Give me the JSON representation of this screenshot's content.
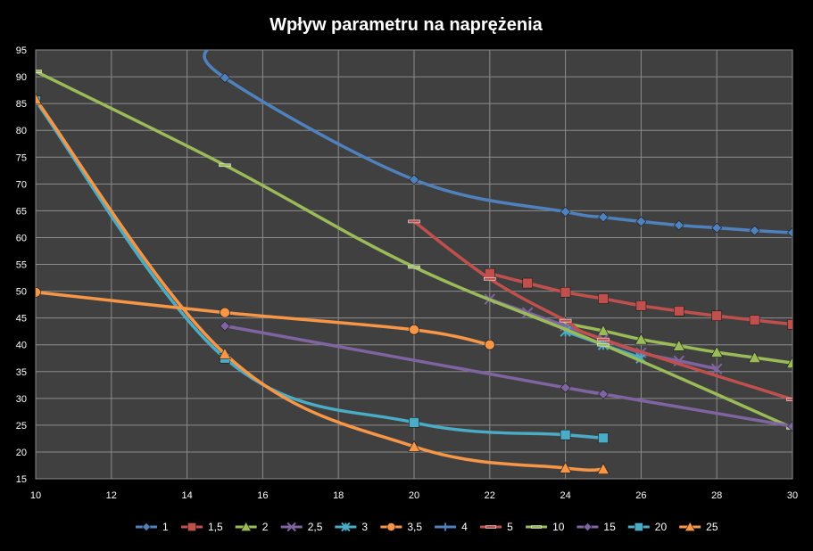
{
  "chart_data": {
    "type": "line",
    "title": "Wpływ parametru na naprężenia",
    "xlabel": "",
    "ylabel": "",
    "xlim": [
      10,
      30
    ],
    "ylim": [
      15,
      95
    ],
    "xticks": [
      10,
      12,
      14,
      16,
      18,
      20,
      22,
      24,
      26,
      28,
      30
    ],
    "yticks": [
      15,
      20,
      25,
      30,
      35,
      40,
      45,
      50,
      55,
      60,
      65,
      70,
      75,
      80,
      85,
      90,
      95
    ],
    "grid": true,
    "legend_position": "bottom",
    "background": "#404040",
    "series": [
      {
        "name": "1",
        "color": "#4F81BD",
        "marker": "diamond",
        "points": [
          [
            14.6,
            96
          ],
          [
            15,
            89.8
          ],
          [
            20,
            70.8
          ],
          [
            24,
            64.8
          ],
          [
            25,
            63.8
          ],
          [
            26,
            63
          ],
          [
            27,
            62.3
          ],
          [
            28,
            61.8
          ],
          [
            29,
            61.3
          ],
          [
            30,
            60.9
          ]
        ]
      },
      {
        "name": "1,5",
        "color": "#C0504D",
        "marker": "square",
        "points": [
          [
            22,
            53.3
          ],
          [
            23,
            51.5
          ],
          [
            24,
            49.8
          ],
          [
            25,
            48.6
          ],
          [
            26,
            47.3
          ],
          [
            27,
            46.3
          ],
          [
            28,
            45.4
          ],
          [
            29,
            44.6
          ],
          [
            30,
            43.8
          ]
        ]
      },
      {
        "name": "2",
        "color": "#9BBB59",
        "marker": "triangle",
        "points": [
          [
            24,
            44
          ],
          [
            25,
            42.6
          ],
          [
            26,
            41
          ],
          [
            27,
            39.8
          ],
          [
            28,
            38.6
          ],
          [
            29,
            37.6
          ],
          [
            30,
            36.6
          ]
        ]
      },
      {
        "name": "2,5",
        "color": "#8064A2",
        "marker": "x",
        "points": [
          [
            22,
            48.5
          ],
          [
            23,
            46
          ],
          [
            24,
            43.5
          ],
          [
            25,
            41
          ],
          [
            26,
            38.5
          ],
          [
            27,
            37
          ],
          [
            28,
            35.5
          ]
        ]
      },
      {
        "name": "3",
        "color": "#4BACC6",
        "marker": "star",
        "points": [
          [
            24,
            42.5
          ],
          [
            25,
            40
          ],
          [
            26,
            37.5
          ]
        ]
      },
      {
        "name": "3,5",
        "color": "#F79646",
        "marker": "circle",
        "points": [
          [
            10,
            49.8
          ],
          [
            15,
            46
          ],
          [
            20,
            42.8
          ],
          [
            22,
            40
          ]
        ]
      },
      {
        "name": "4",
        "color": "#4F81BD",
        "marker": "plus",
        "points": []
      },
      {
        "name": "5",
        "color": "#C0504D",
        "marker": "dash",
        "points": [
          [
            20,
            63
          ],
          [
            22,
            52.3
          ],
          [
            24,
            44.5
          ],
          [
            25,
            41
          ],
          [
            30,
            29.8
          ]
        ]
      },
      {
        "name": "10",
        "color": "#9BBB59",
        "marker": "dash",
        "points": [
          [
            10,
            91
          ],
          [
            15,
            73.5
          ],
          [
            20,
            54.5
          ],
          [
            25,
            40
          ],
          [
            30,
            24.5
          ]
        ]
      },
      {
        "name": "15",
        "color": "#8064A2",
        "marker": "diamond",
        "points": [
          [
            15,
            43.5
          ],
          [
            24,
            32
          ],
          [
            25,
            30.8
          ],
          [
            30,
            24.8
          ]
        ]
      },
      {
        "name": "20",
        "color": "#4BACC6",
        "marker": "square",
        "points": [
          [
            10,
            85.5
          ],
          [
            15,
            37.5
          ],
          [
            20,
            25.5
          ],
          [
            24,
            23.2
          ],
          [
            25,
            22.6
          ]
        ]
      },
      {
        "name": "25",
        "color": "#F79646",
        "marker": "triangle",
        "points": [
          [
            10,
            85.8
          ],
          [
            15,
            38.3
          ],
          [
            20,
            21
          ],
          [
            24,
            17
          ],
          [
            25,
            16.8
          ]
        ]
      }
    ]
  }
}
